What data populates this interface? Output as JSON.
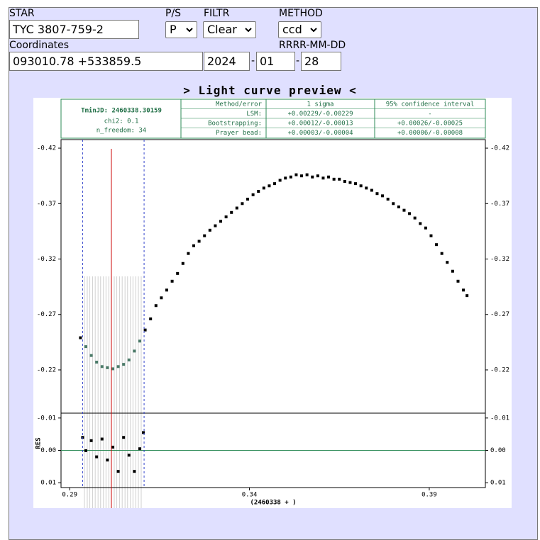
{
  "form": {
    "star_label": "STAR",
    "star": "TYC 3807-759-2",
    "ps_label": "P/S",
    "ps": "P",
    "filter_label": "FILTR",
    "filter": "Clear",
    "method_label": "METHOD",
    "method": "ccd",
    "coord_label": "Coordinates",
    "coord": "093010.78 +533859.5",
    "date_label": "RRRR-MM-DD",
    "year": "2024",
    "month": "01",
    "day": "28",
    "date_sep": "-"
  },
  "preview_title": "> Light curve preview <",
  "info": {
    "tmin": "TminJD: 2460338.30159",
    "chi2": "chi2: 0.1",
    "n_freedom": "n_freedom: 34",
    "header": [
      "Method/error",
      "1 sigma",
      "95% confidence interval"
    ],
    "rows": [
      [
        "LSM:",
        "+0.00229/-0.00229",
        "-"
      ],
      [
        "Bootstrapping:",
        "+0.00012/-0.00013",
        "+0.00026/-0.00025"
      ],
      [
        "Prayer bead:",
        "+0.00003/-0.00004",
        "+0.00006/-0.00008"
      ]
    ]
  },
  "chart_data": [
    {
      "type": "scatter",
      "color": "#000000",
      "window_color": "#4a7a68",
      "xlim": [
        0.2876,
        0.4056
      ],
      "ylim": [
        -0.4277,
        -0.181
      ],
      "y_inverted": true,
      "yticks": [
        -0.42,
        -0.37,
        -0.32,
        -0.27,
        -0.22
      ],
      "window": [
        0.2936,
        0.3107
      ],
      "minimum_line": 0.3016,
      "x": [
        0.293,
        0.2945,
        0.296,
        0.2975,
        0.299,
        0.3005,
        0.302,
        0.3035,
        0.305,
        0.3065,
        0.308,
        0.3095,
        0.311,
        0.3125,
        0.314,
        0.3155,
        0.317,
        0.3185,
        0.32,
        0.3215,
        0.323,
        0.3245,
        0.326,
        0.3275,
        0.329,
        0.3305,
        0.332,
        0.3335,
        0.335,
        0.3365,
        0.338,
        0.3395,
        0.341,
        0.3425,
        0.344,
        0.3455,
        0.347,
        0.3485,
        0.35,
        0.3515,
        0.353,
        0.3545,
        0.356,
        0.3575,
        0.359,
        0.3605,
        0.362,
        0.3635,
        0.365,
        0.3665,
        0.368,
        0.3695,
        0.371,
        0.3725,
        0.374,
        0.3755,
        0.377,
        0.3785,
        0.38,
        0.3815,
        0.383,
        0.3845,
        0.386,
        0.3875,
        0.389,
        0.3905,
        0.392,
        0.3935,
        0.395,
        0.3965,
        0.398,
        0.3995,
        0.4005
      ],
      "values": [
        -0.249,
        -0.241,
        -0.233,
        -0.227,
        -0.223,
        -0.222,
        -0.221,
        -0.223,
        -0.225,
        -0.229,
        -0.237,
        -0.246,
        -0.256,
        -0.266,
        -0.278,
        -0.285,
        -0.292,
        -0.3,
        -0.307,
        -0.316,
        -0.325,
        -0.332,
        -0.336,
        -0.341,
        -0.346,
        -0.35,
        -0.354,
        -0.358,
        -0.362,
        -0.366,
        -0.37,
        -0.374,
        -0.378,
        -0.381,
        -0.384,
        -0.386,
        -0.388,
        -0.391,
        -0.393,
        -0.394,
        -0.396,
        -0.395,
        -0.396,
        -0.394,
        -0.395,
        -0.393,
        -0.394,
        -0.392,
        -0.392,
        -0.39,
        -0.389,
        -0.388,
        -0.386,
        -0.384,
        -0.382,
        -0.379,
        -0.377,
        -0.374,
        -0.37,
        -0.367,
        -0.364,
        -0.361,
        -0.357,
        -0.352,
        -0.348,
        -0.341,
        -0.333,
        -0.325,
        -0.317,
        -0.309,
        -0.3,
        -0.292,
        -0.287
      ]
    },
    {
      "type": "scatter",
      "color": "#000000",
      "zero_line_color": "#2e8b57",
      "xlim": [
        0.2876,
        0.4056
      ],
      "ylim": [
        -0.0115,
        0.0115
      ],
      "y_inverted": true,
      "yticks": [
        -0.01,
        {
          "value": 0,
          "label": "0.00"
        },
        0.01
      ],
      "xticks": [
        0.29,
        0.34,
        0.39
      ],
      "ylabel": "RES",
      "xlabel": "(2460338 + )",
      "x": [
        0.2936,
        0.2945,
        0.296,
        0.2975,
        0.299,
        0.3005,
        0.302,
        0.3035,
        0.305,
        0.3065,
        0.308,
        0.3095,
        0.3105
      ],
      "values": [
        -0.004,
        0.0001,
        -0.003,
        0.002,
        -0.0035,
        0.003,
        -0.001,
        0.0065,
        -0.004,
        0.0015,
        0.0065,
        -0.0005,
        -0.0055
      ]
    }
  ]
}
